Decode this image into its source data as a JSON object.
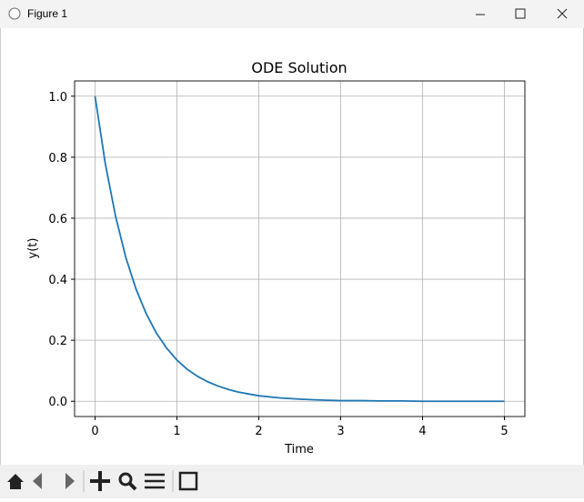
{
  "window": {
    "title": "Figure 1"
  },
  "chart_data": {
    "type": "line",
    "title": "ODE Solution",
    "x_label": "Time",
    "y_label": "y(t)",
    "x": [
      0,
      0.125,
      0.25,
      0.375,
      0.5,
      0.625,
      0.75,
      0.875,
      1,
      1.125,
      1.25,
      1.375,
      1.5,
      1.625,
      1.75,
      1.875,
      2,
      2.25,
      2.5,
      2.75,
      3,
      3.25,
      3.5,
      3.75,
      4,
      4.25,
      4.5,
      4.75,
      5
    ],
    "values": [
      1,
      0.779,
      0.607,
      0.472,
      0.368,
      0.287,
      0.223,
      0.174,
      0.135,
      0.105,
      0.082,
      0.064,
      0.05,
      0.039,
      0.03,
      0.024,
      0.018,
      0.011,
      0.007,
      0.004,
      0.002,
      0.002,
      0.001,
      0.001,
      0,
      0,
      0,
      0,
      0
    ],
    "color": "#1f77b4",
    "xlim": [
      -0.25,
      5.25
    ],
    "xticks": [
      0,
      1,
      2,
      3,
      4,
      5
    ],
    "ylim": [
      -0.05,
      1.05
    ],
    "yticks": [
      {
        "value": 0,
        "label": "0.0"
      },
      {
        "value": 0.2,
        "label": "0.2"
      },
      {
        "value": 0.4,
        "label": "0.4"
      },
      {
        "value": 0.6,
        "label": "0.6"
      },
      {
        "value": 0.8,
        "label": "0.8"
      },
      {
        "value": 1,
        "label": "1.0"
      }
    ],
    "grid": true
  }
}
